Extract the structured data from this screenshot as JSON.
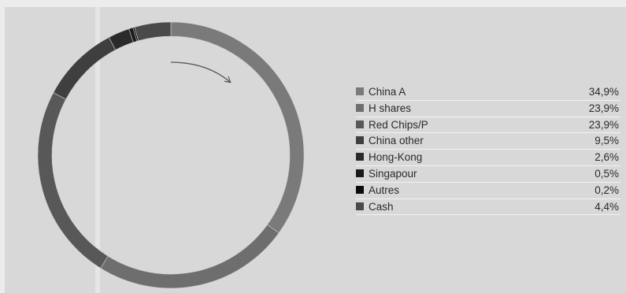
{
  "chart_data": {
    "type": "pie",
    "variant": "donut",
    "title": "",
    "categories": [
      "China A",
      "H shares",
      "Red Chips/P",
      "China other",
      "Hong-Kong",
      "Singapour",
      "Autres",
      "Cash"
    ],
    "values": [
      34.9,
      23.9,
      23.9,
      9.5,
      2.6,
      0.5,
      0.2,
      4.4
    ],
    "value_labels": [
      "34,9%",
      "23,9%",
      "23,9%",
      "9,5%",
      "2,6%",
      "0,5%",
      "0,2%",
      "4,4%"
    ],
    "colors": [
      "#7a7a7a",
      "#6e6e6e",
      "#585858",
      "#3f3f3f",
      "#2a2a2a",
      "#1a1a1a",
      "#0c0c0c",
      "#4a4a4a"
    ],
    "unit": "%",
    "legend_position": "right",
    "direction": "clockwise",
    "start": "top"
  }
}
